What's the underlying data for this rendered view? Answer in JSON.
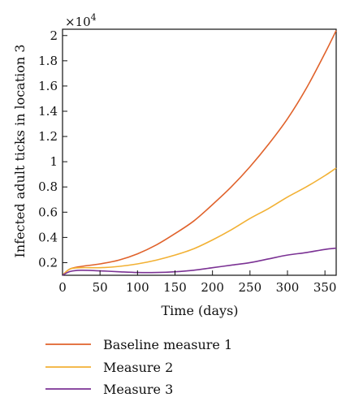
{
  "chart_data": {
    "type": "line",
    "title": "",
    "xlabel": "Time (days)",
    "ylabel": "Infected adult ticks in location 3",
    "y_multiplier_label": "×10",
    "y_multiplier_exponent": "4",
    "xlim": [
      0,
      365
    ],
    "ylim": [
      0.1,
      2.05
    ],
    "x_ticks": [
      0,
      50,
      100,
      150,
      200,
      250,
      300,
      350
    ],
    "x_tick_labels": [
      "0",
      "50",
      "100",
      "150",
      "200",
      "250",
      "300",
      "350"
    ],
    "y_ticks": [
      0.2,
      0.4,
      0.6,
      0.8,
      1.0,
      1.2,
      1.4,
      1.6,
      1.8,
      2.0
    ],
    "y_tick_labels": [
      "0.2",
      "0.4",
      "0.6",
      "0.8",
      "1",
      "1.2",
      "1.4",
      "1.6",
      "1.8",
      "2"
    ],
    "grid": false,
    "legend_position": "bottom",
    "x": [
      0,
      10,
      25,
      50,
      75,
      100,
      125,
      150,
      175,
      200,
      225,
      250,
      275,
      300,
      325,
      350,
      365
    ],
    "series": [
      {
        "name": "Baseline measure 1",
        "color": "#e0622b",
        "values": [
          0.1,
          0.15,
          0.17,
          0.19,
          0.22,
          0.27,
          0.34,
          0.43,
          0.53,
          0.66,
          0.8,
          0.96,
          1.14,
          1.34,
          1.58,
          1.86,
          2.04
        ]
      },
      {
        "name": "Measure 2",
        "color": "#f2b134",
        "values": [
          0.1,
          0.15,
          0.16,
          0.16,
          0.17,
          0.19,
          0.22,
          0.26,
          0.31,
          0.38,
          0.46,
          0.55,
          0.63,
          0.72,
          0.8,
          0.89,
          0.95
        ]
      },
      {
        "name": "Measure 3",
        "color": "#7b3294",
        "values": [
          0.1,
          0.13,
          0.14,
          0.135,
          0.128,
          0.122,
          0.122,
          0.128,
          0.14,
          0.16,
          0.18,
          0.2,
          0.23,
          0.26,
          0.28,
          0.305,
          0.315
        ]
      }
    ]
  }
}
